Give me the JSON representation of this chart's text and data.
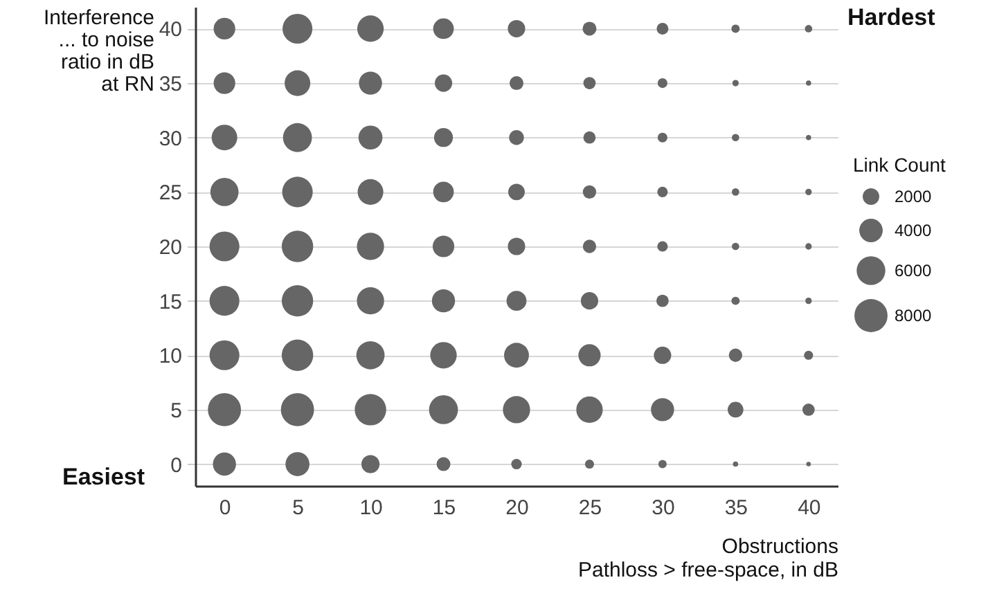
{
  "chart_data": {
    "type": "bubble",
    "xlabel": "Obstructions\nPathloss > free-space, in dB",
    "ylabel": "Interference\n... to noise\nratio in dB\nat RN",
    "legend_title": "Link Count",
    "annotations": [
      "Hardest",
      "Easiest"
    ],
    "xlim": [
      -2,
      42
    ],
    "ylim": [
      -2,
      42
    ],
    "xticks": [
      0,
      5,
      10,
      15,
      20,
      25,
      30,
      35,
      40
    ],
    "yticks": [
      0,
      5,
      10,
      15,
      20,
      25,
      30,
      35,
      40
    ],
    "grid": "y",
    "size_legend": [
      2000,
      4000,
      6000,
      8000
    ],
    "series": [
      {
        "color": "#666666",
        "x": [
          0,
          5,
          10,
          15,
          20,
          25,
          30,
          35,
          40,
          0,
          5,
          10,
          15,
          20,
          25,
          30,
          35,
          40,
          0,
          5,
          10,
          15,
          20,
          25,
          30,
          35,
          40,
          0,
          5,
          10,
          15,
          20,
          25,
          30,
          35,
          40,
          0,
          5,
          10,
          15,
          20,
          25,
          30,
          35,
          40,
          0,
          5,
          10,
          15,
          20,
          25,
          30,
          35,
          40,
          0,
          5,
          10,
          15,
          20,
          25,
          30,
          35,
          40,
          0,
          5,
          10,
          15,
          20,
          25,
          30,
          35,
          40,
          0,
          5,
          10,
          15,
          20,
          25,
          30,
          35,
          40
        ],
        "values": [
          0,
          0,
          0,
          0,
          0,
          0,
          0,
          0,
          0,
          5,
          5,
          5,
          5,
          5,
          5,
          5,
          5,
          5,
          10,
          10,
          10,
          10,
          10,
          10,
          10,
          10,
          10,
          15,
          15,
          15,
          15,
          15,
          15,
          15,
          15,
          15,
          20,
          20,
          20,
          20,
          20,
          20,
          20,
          20,
          20,
          25,
          25,
          25,
          25,
          25,
          25,
          25,
          25,
          25,
          30,
          30,
          30,
          30,
          30,
          30,
          30,
          30,
          30,
          35,
          35,
          35,
          35,
          35,
          35,
          35,
          35,
          35,
          40,
          40,
          40,
          40,
          40,
          40,
          40,
          40,
          40
        ],
        "sizes": [
          3900,
          4200,
          2400,
          1400,
          800,
          600,
          500,
          200,
          150,
          8000,
          8000,
          7200,
          6100,
          5400,
          5100,
          3900,
          1800,
          1100,
          6500,
          7200,
          5800,
          5100,
          4500,
          3600,
          2200,
          1300,
          600,
          6500,
          7200,
          5400,
          3900,
          2900,
          2200,
          1100,
          500,
          300,
          6500,
          7200,
          5400,
          3400,
          2200,
          1300,
          800,
          400,
          300,
          5800,
          6800,
          4800,
          3100,
          2000,
          1300,
          800,
          400,
          300,
          4800,
          6100,
          4200,
          2600,
          1600,
          1100,
          700,
          400,
          200,
          3400,
          4800,
          3900,
          2200,
          1400,
          1100,
          700,
          300,
          200,
          3400,
          6500,
          5100,
          3100,
          2200,
          1400,
          1000,
          500,
          400
        ]
      }
    ]
  }
}
